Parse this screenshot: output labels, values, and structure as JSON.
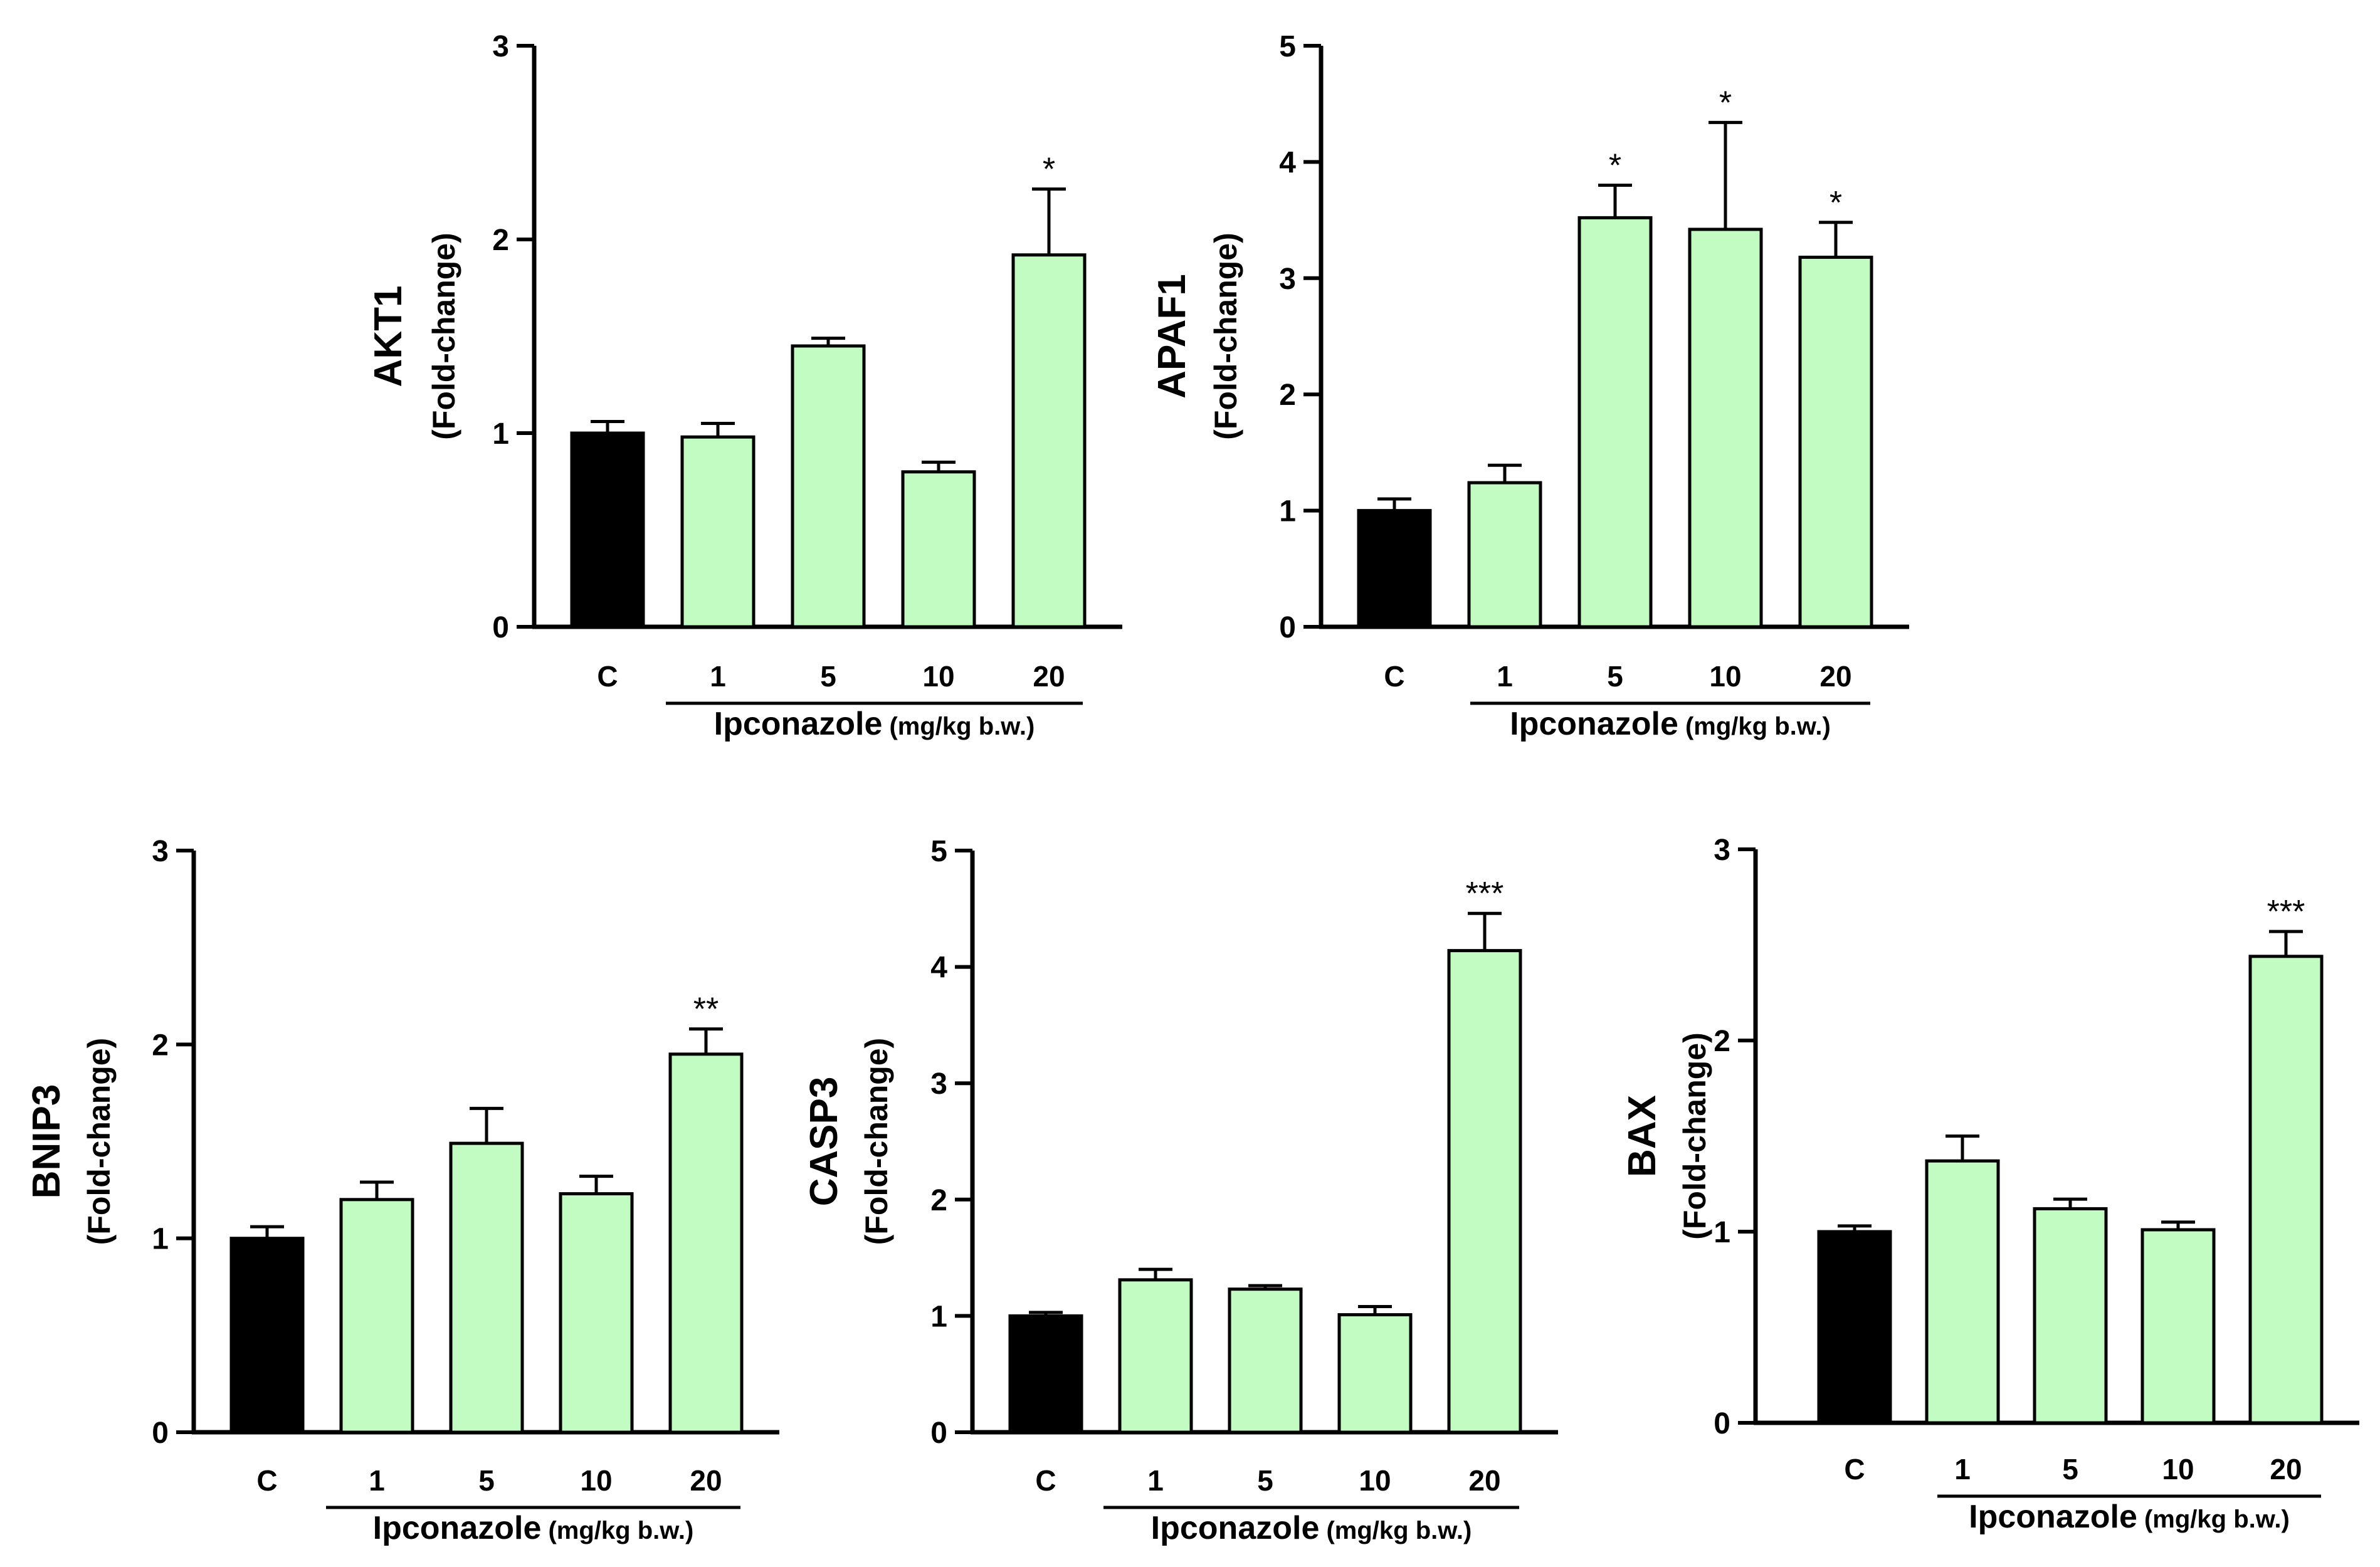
{
  "chart_data": [
    {
      "type": "bar",
      "title": "AKT1",
      "ylabel": "(Fold-change)",
      "categories": [
        "C",
        "1",
        "5",
        "10",
        "20"
      ],
      "values": [
        1.0,
        0.98,
        1.45,
        0.8,
        1.92
      ],
      "errors": [
        0.06,
        0.07,
        0.04,
        0.05,
        0.34
      ],
      "significance": [
        "",
        "",
        "",
        "",
        "*"
      ],
      "ylim": [
        0,
        3
      ],
      "yticks": [
        "0",
        "1",
        "2",
        "3"
      ],
      "group_label": "Ipconazole",
      "group_unit": "(mg/kg b.w.)",
      "colors": [
        "#000000",
        "#c2fcc2",
        "#c2fcc2",
        "#c2fcc2",
        "#c2fcc2"
      ]
    },
    {
      "type": "bar",
      "title": "APAF1",
      "ylabel": "(Fold-change)",
      "categories": [
        "C",
        "1",
        "5",
        "10",
        "20"
      ],
      "values": [
        1.0,
        1.24,
        3.52,
        3.42,
        3.18
      ],
      "errors": [
        0.1,
        0.15,
        0.28,
        0.92,
        0.3
      ],
      "significance": [
        "",
        "",
        "*",
        "*",
        "*"
      ],
      "ylim": [
        0,
        5
      ],
      "yticks": [
        "0",
        "1",
        "2",
        "3",
        "4",
        "5"
      ],
      "group_label": "Ipconazole",
      "group_unit": "(mg/kg b.w.)",
      "colors": [
        "#000000",
        "#c2fcc2",
        "#c2fcc2",
        "#c2fcc2",
        "#c2fcc2"
      ]
    },
    {
      "type": "bar",
      "title": "BNIP3",
      "ylabel": "(Fold-change)",
      "categories": [
        "C",
        "1",
        "5",
        "10",
        "20"
      ],
      "values": [
        1.0,
        1.2,
        1.49,
        1.23,
        1.95
      ],
      "errors": [
        0.06,
        0.09,
        0.18,
        0.09,
        0.13
      ],
      "significance": [
        "",
        "",
        "",
        "",
        "**"
      ],
      "ylim": [
        0,
        3
      ],
      "yticks": [
        "0",
        "1",
        "2",
        "3"
      ],
      "group_label": "Ipconazole",
      "group_unit": "(mg/kg b.w.)",
      "colors": [
        "#000000",
        "#c2fcc2",
        "#c2fcc2",
        "#c2fcc2",
        "#c2fcc2"
      ]
    },
    {
      "type": "bar",
      "title": "CASP3",
      "ylabel": "(Fold-change)",
      "categories": [
        "C",
        "1",
        "5",
        "10",
        "20"
      ],
      "values": [
        1.0,
        1.31,
        1.23,
        1.01,
        4.14
      ],
      "errors": [
        0.03,
        0.09,
        0.03,
        0.07,
        0.32
      ],
      "significance": [
        "",
        "",
        "",
        "",
        "***"
      ],
      "ylim": [
        0,
        5
      ],
      "yticks": [
        "0",
        "1",
        "2",
        "3",
        "4",
        "5"
      ],
      "group_label": "Ipconazole",
      "group_unit": "(mg/kg b.w.)",
      "colors": [
        "#000000",
        "#c2fcc2",
        "#c2fcc2",
        "#c2fcc2",
        "#c2fcc2"
      ]
    },
    {
      "type": "bar",
      "title": "BAX",
      "ylabel": "(Fold-change)",
      "categories": [
        "C",
        "1",
        "5",
        "10",
        "20"
      ],
      "values": [
        1.0,
        1.37,
        1.12,
        1.01,
        2.44
      ],
      "errors": [
        0.03,
        0.13,
        0.05,
        0.04,
        0.13
      ],
      "significance": [
        "",
        "",
        "",
        "",
        "***"
      ],
      "ylim": [
        0,
        3
      ],
      "yticks": [
        "0",
        "1",
        "2",
        "3"
      ],
      "group_label": "Ipconazole",
      "group_unit": "(mg/kg b.w.)",
      "colors": [
        "#000000",
        "#c2fcc2",
        "#c2fcc2",
        "#c2fcc2",
        "#c2fcc2"
      ]
    }
  ]
}
